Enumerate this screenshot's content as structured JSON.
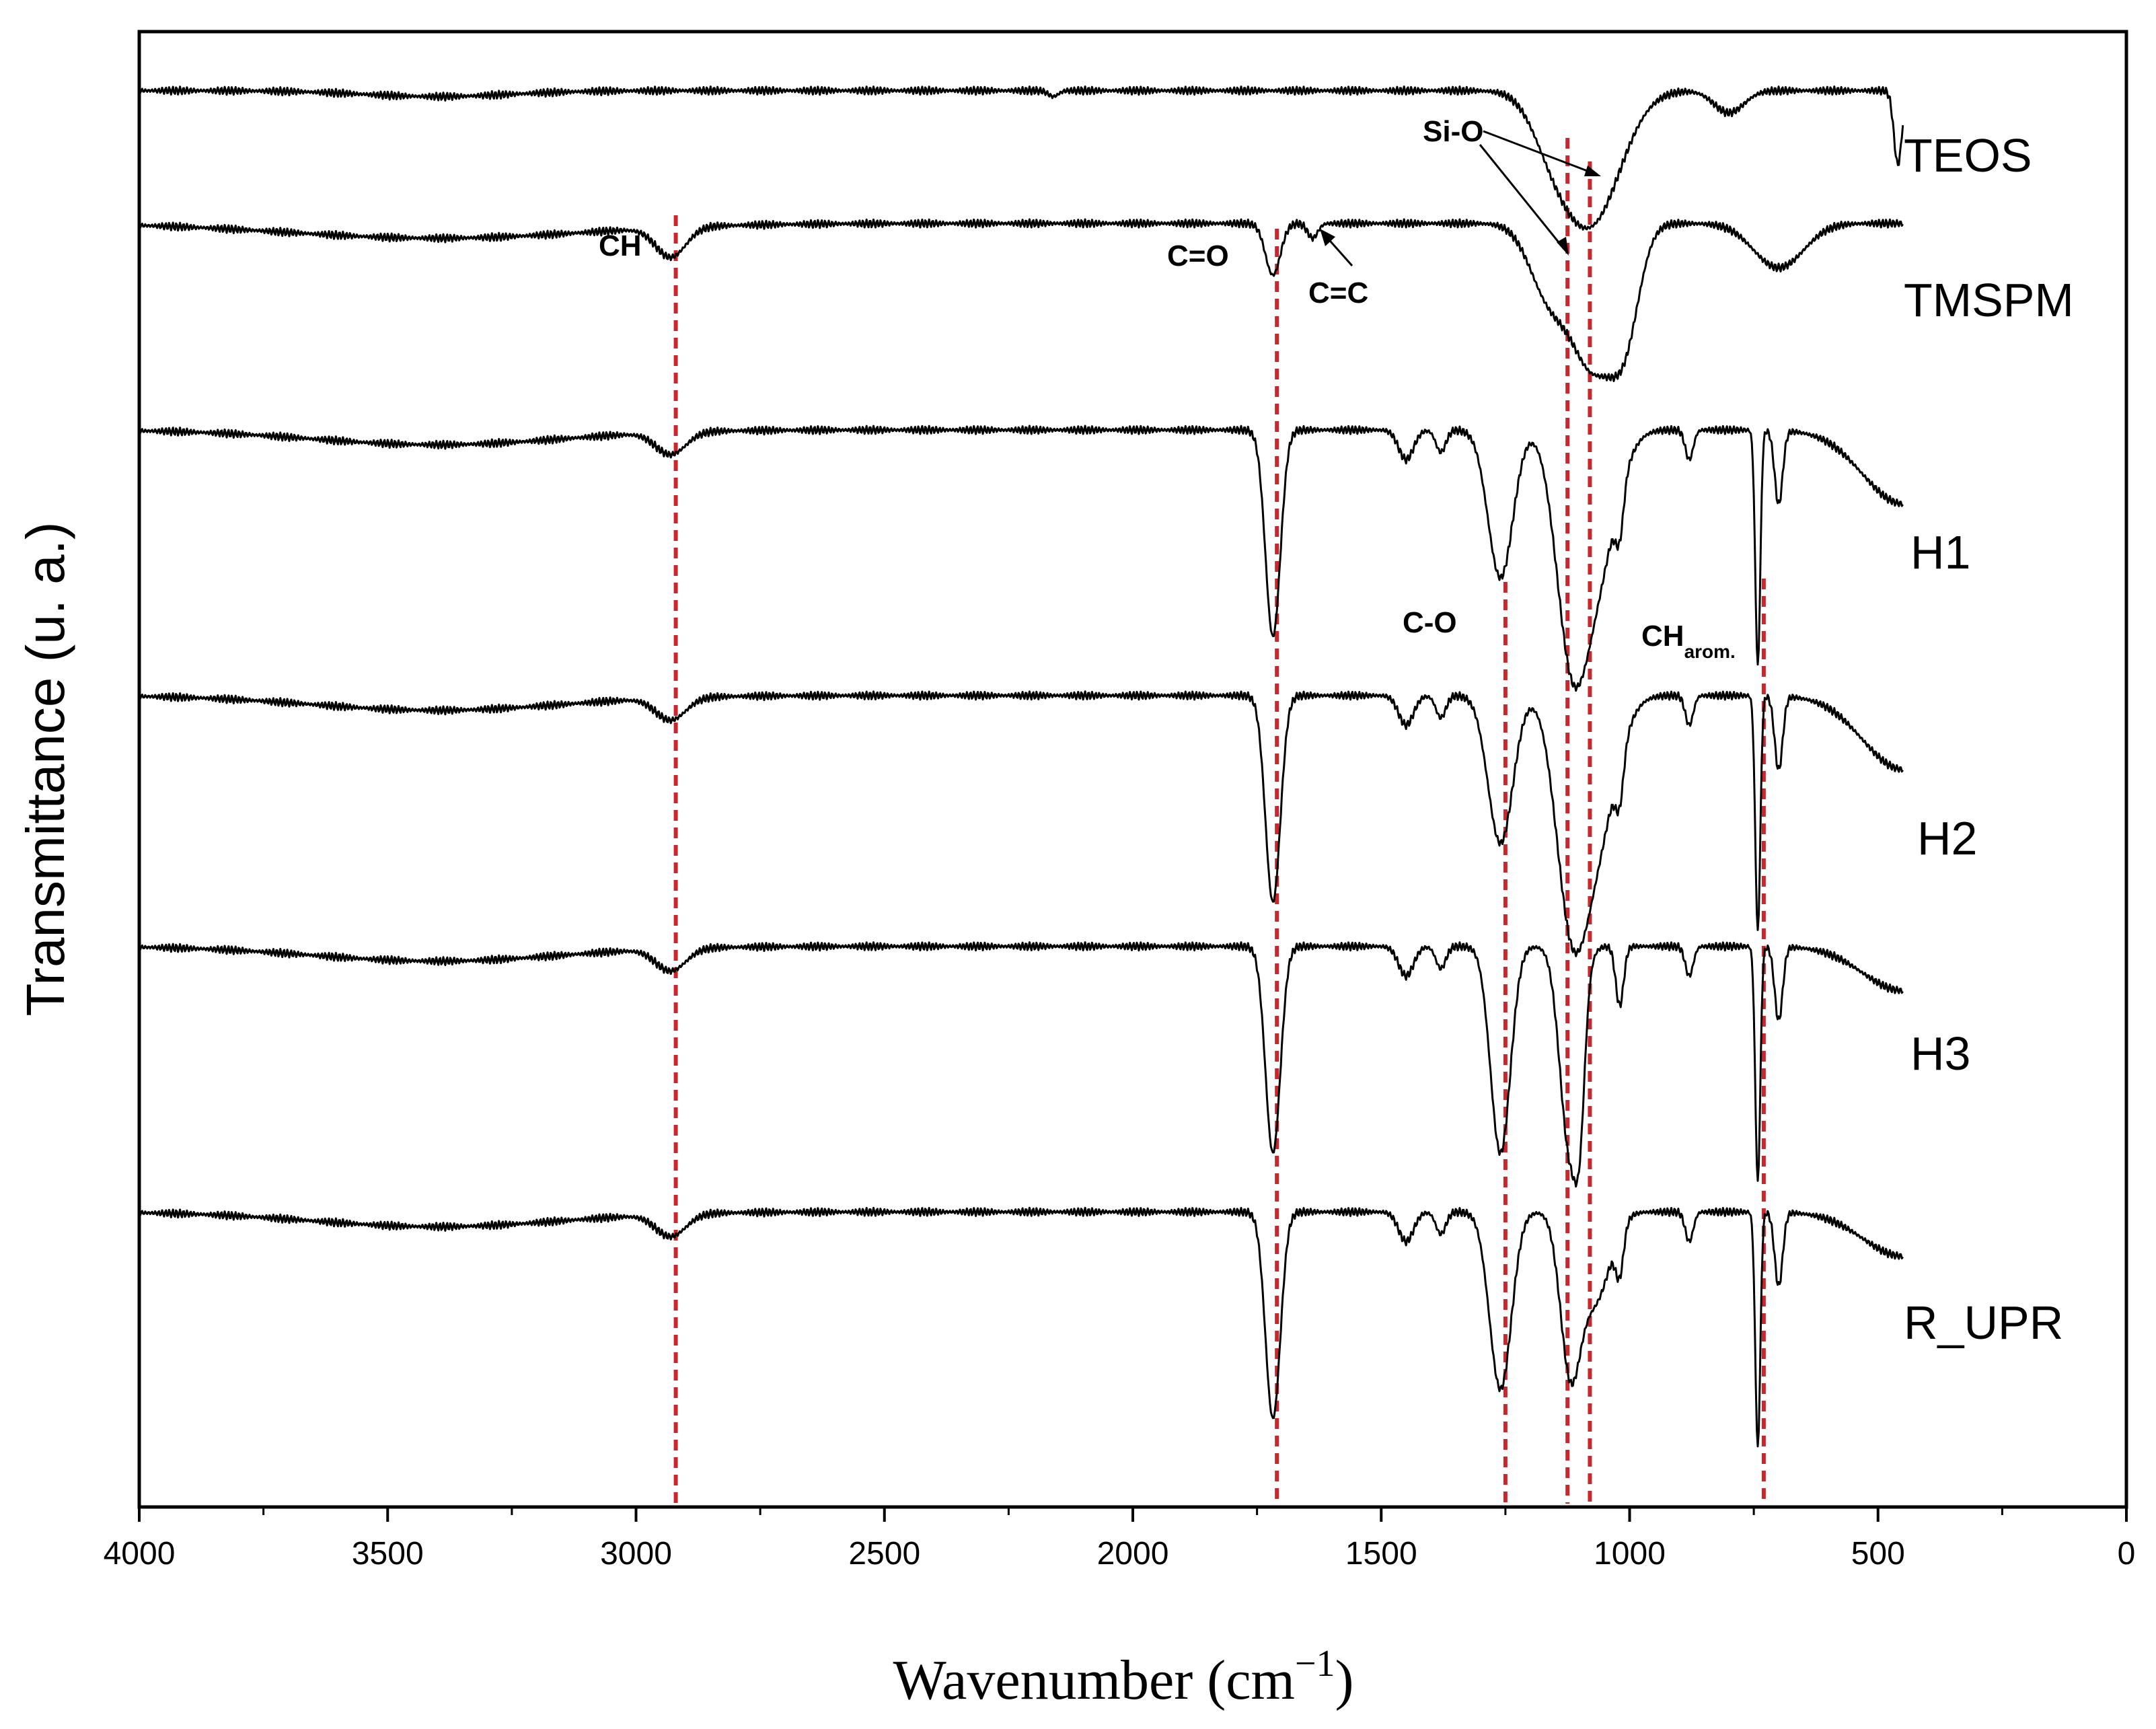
{
  "chart_data": {
    "type": "line",
    "title": "",
    "xlabel": "Wavenumber (cm⁻¹)",
    "xlabel_parts": [
      "Wavenumber (cm",
      "−1",
      ")"
    ],
    "ylabel": "Transmittance (u. a.)",
    "xlim": [
      4000,
      0
    ],
    "x_ticks": [
      4000,
      3500,
      3000,
      2500,
      2000,
      1500,
      1000,
      500,
      0
    ],
    "x_tick_labels": [
      "4000",
      "3500",
      "3000",
      "2500",
      "2000",
      "1500",
      "1000",
      "500",
      "0"
    ],
    "y_ticks_shown": false,
    "ylim": [
      0,
      100
    ],
    "series": [
      {
        "name": "TEOS",
        "baseline": 96,
        "x_end": 450,
        "bands": [
          [
            3400,
            0.4,
            150
          ],
          [
            2160,
            0.4,
            10
          ],
          [
            1080,
            9,
            60
          ],
          [
            1160,
            2,
            40
          ],
          [
            800,
            1.5,
            30
          ],
          [
            460,
            5,
            8
          ]
        ]
      },
      {
        "name": "TMSPM",
        "baseline": 87,
        "x_end": 450,
        "bands": [
          [
            3400,
            1,
            300
          ],
          [
            2930,
            2,
            30
          ],
          [
            1718,
            3.5,
            15
          ],
          [
            1638,
            1,
            10
          ],
          [
            1160,
            5,
            40
          ],
          [
            1075,
            9,
            40
          ],
          [
            1010,
            7,
            30
          ],
          [
            700,
            3,
            50
          ]
        ]
      },
      {
        "name": "H1",
        "baseline": 73,
        "x_end": 450,
        "bands": [
          [
            3400,
            1,
            250
          ],
          [
            2930,
            1.5,
            30
          ],
          [
            1718,
            14,
            15
          ],
          [
            1450,
            2,
            15
          ],
          [
            1380,
            1.5,
            10
          ],
          [
            1260,
            10,
            25
          ],
          [
            1120,
            12,
            30
          ],
          [
            1070,
            10,
            40
          ],
          [
            1020,
            3,
            8
          ],
          [
            880,
            2,
            8
          ],
          [
            742,
            16,
            5
          ],
          [
            700,
            5,
            8
          ],
          [
            450,
            5,
            80
          ]
        ]
      },
      {
        "name": "H2",
        "baseline": 55,
        "x_end": 450,
        "bands": [
          [
            3400,
            1,
            250
          ],
          [
            2930,
            1.5,
            30
          ],
          [
            1718,
            14,
            15
          ],
          [
            1450,
            2,
            15
          ],
          [
            1380,
            1.5,
            10
          ],
          [
            1260,
            10,
            25
          ],
          [
            1120,
            12,
            30
          ],
          [
            1070,
            10,
            40
          ],
          [
            1020,
            3,
            8
          ],
          [
            880,
            2,
            8
          ],
          [
            742,
            16,
            5
          ],
          [
            700,
            5,
            8
          ],
          [
            450,
            5,
            80
          ]
        ]
      },
      {
        "name": "H3",
        "baseline": 38,
        "x_end": 450,
        "bands": [
          [
            3400,
            1,
            250
          ],
          [
            2930,
            1.5,
            30
          ],
          [
            1718,
            14,
            15
          ],
          [
            1450,
            2,
            15
          ],
          [
            1380,
            1.5,
            10
          ],
          [
            1260,
            14,
            20
          ],
          [
            1120,
            14,
            20
          ],
          [
            1100,
            6,
            10
          ],
          [
            1020,
            4,
            8
          ],
          [
            880,
            2,
            8
          ],
          [
            742,
            16,
            5
          ],
          [
            700,
            5,
            8
          ],
          [
            450,
            3,
            80
          ]
        ]
      },
      {
        "name": "R_UPR",
        "baseline": 20,
        "x_end": 450,
        "bands": [
          [
            3400,
            1,
            250
          ],
          [
            2930,
            1.5,
            30
          ],
          [
            1718,
            14,
            15
          ],
          [
            1450,
            2,
            15
          ],
          [
            1380,
            1.5,
            10
          ],
          [
            1260,
            12,
            22
          ],
          [
            1120,
            10,
            20
          ],
          [
            1070,
            6,
            30
          ],
          [
            1020,
            3,
            8
          ],
          [
            880,
            2,
            8
          ],
          [
            742,
            16,
            5
          ],
          [
            700,
            5,
            8
          ],
          [
            450,
            3,
            80
          ]
        ]
      }
    ],
    "reference_lines": {
      "color": "#c8272b",
      "dash": "dashed",
      "positions": [
        2920,
        1710,
        1250,
        1125,
        1080,
        730
      ]
    },
    "annotations": [
      {
        "text": "CH",
        "sub": "",
        "x": 2960
      },
      {
        "text": "C=O",
        "sub": "",
        "x": 1790
      },
      {
        "text": "C=C",
        "sub": "",
        "x": 1600
      },
      {
        "text": "Si-O",
        "sub": "",
        "x": 1225
      },
      {
        "text": "C-O",
        "sub": "",
        "x": 1330
      },
      {
        "text": "CH",
        "sub": "arom.",
        "x": 900
      }
    ]
  }
}
